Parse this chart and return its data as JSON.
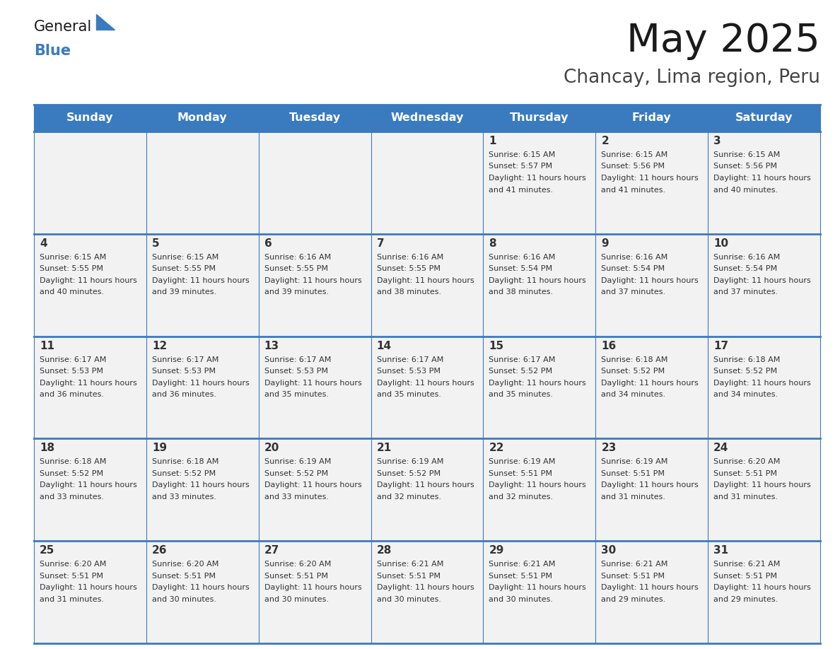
{
  "title": "May 2025",
  "subtitle": "Chancay, Lima region, Peru",
  "header_color": "#3a7bbf",
  "header_text_color": "#ffffff",
  "cell_bg_color": "#f2f2f2",
  "day_num_color": "#333333",
  "text_color": "#333333",
  "line_color": "#3a7bbf",
  "days_of_week": [
    "Sunday",
    "Monday",
    "Tuesday",
    "Wednesday",
    "Thursday",
    "Friday",
    "Saturday"
  ],
  "weeks": [
    [
      {
        "day": "",
        "sunrise": "",
        "sunset": "",
        "daylight": ""
      },
      {
        "day": "",
        "sunrise": "",
        "sunset": "",
        "daylight": ""
      },
      {
        "day": "",
        "sunrise": "",
        "sunset": "",
        "daylight": ""
      },
      {
        "day": "",
        "sunrise": "",
        "sunset": "",
        "daylight": ""
      },
      {
        "day": "1",
        "sunrise": "6:15 AM",
        "sunset": "5:57 PM",
        "daylight": "11 hours and 41 minutes."
      },
      {
        "day": "2",
        "sunrise": "6:15 AM",
        "sunset": "5:56 PM",
        "daylight": "11 hours and 41 minutes."
      },
      {
        "day": "3",
        "sunrise": "6:15 AM",
        "sunset": "5:56 PM",
        "daylight": "11 hours and 40 minutes."
      }
    ],
    [
      {
        "day": "4",
        "sunrise": "6:15 AM",
        "sunset": "5:55 PM",
        "daylight": "11 hours and 40 minutes."
      },
      {
        "day": "5",
        "sunrise": "6:15 AM",
        "sunset": "5:55 PM",
        "daylight": "11 hours and 39 minutes."
      },
      {
        "day": "6",
        "sunrise": "6:16 AM",
        "sunset": "5:55 PM",
        "daylight": "11 hours and 39 minutes."
      },
      {
        "day": "7",
        "sunrise": "6:16 AM",
        "sunset": "5:55 PM",
        "daylight": "11 hours and 38 minutes."
      },
      {
        "day": "8",
        "sunrise": "6:16 AM",
        "sunset": "5:54 PM",
        "daylight": "11 hours and 38 minutes."
      },
      {
        "day": "9",
        "sunrise": "6:16 AM",
        "sunset": "5:54 PM",
        "daylight": "11 hours and 37 minutes."
      },
      {
        "day": "10",
        "sunrise": "6:16 AM",
        "sunset": "5:54 PM",
        "daylight": "11 hours and 37 minutes."
      }
    ],
    [
      {
        "day": "11",
        "sunrise": "6:17 AM",
        "sunset": "5:53 PM",
        "daylight": "11 hours and 36 minutes."
      },
      {
        "day": "12",
        "sunrise": "6:17 AM",
        "sunset": "5:53 PM",
        "daylight": "11 hours and 36 minutes."
      },
      {
        "day": "13",
        "sunrise": "6:17 AM",
        "sunset": "5:53 PM",
        "daylight": "11 hours and 35 minutes."
      },
      {
        "day": "14",
        "sunrise": "6:17 AM",
        "sunset": "5:53 PM",
        "daylight": "11 hours and 35 minutes."
      },
      {
        "day": "15",
        "sunrise": "6:17 AM",
        "sunset": "5:52 PM",
        "daylight": "11 hours and 35 minutes."
      },
      {
        "day": "16",
        "sunrise": "6:18 AM",
        "sunset": "5:52 PM",
        "daylight": "11 hours and 34 minutes."
      },
      {
        "day": "17",
        "sunrise": "6:18 AM",
        "sunset": "5:52 PM",
        "daylight": "11 hours and 34 minutes."
      }
    ],
    [
      {
        "day": "18",
        "sunrise": "6:18 AM",
        "sunset": "5:52 PM",
        "daylight": "11 hours and 33 minutes."
      },
      {
        "day": "19",
        "sunrise": "6:18 AM",
        "sunset": "5:52 PM",
        "daylight": "11 hours and 33 minutes."
      },
      {
        "day": "20",
        "sunrise": "6:19 AM",
        "sunset": "5:52 PM",
        "daylight": "11 hours and 33 minutes."
      },
      {
        "day": "21",
        "sunrise": "6:19 AM",
        "sunset": "5:52 PM",
        "daylight": "11 hours and 32 minutes."
      },
      {
        "day": "22",
        "sunrise": "6:19 AM",
        "sunset": "5:51 PM",
        "daylight": "11 hours and 32 minutes."
      },
      {
        "day": "23",
        "sunrise": "6:19 AM",
        "sunset": "5:51 PM",
        "daylight": "11 hours and 31 minutes."
      },
      {
        "day": "24",
        "sunrise": "6:20 AM",
        "sunset": "5:51 PM",
        "daylight": "11 hours and 31 minutes."
      }
    ],
    [
      {
        "day": "25",
        "sunrise": "6:20 AM",
        "sunset": "5:51 PM",
        "daylight": "11 hours and 31 minutes."
      },
      {
        "day": "26",
        "sunrise": "6:20 AM",
        "sunset": "5:51 PM",
        "daylight": "11 hours and 30 minutes."
      },
      {
        "day": "27",
        "sunrise": "6:20 AM",
        "sunset": "5:51 PM",
        "daylight": "11 hours and 30 minutes."
      },
      {
        "day": "28",
        "sunrise": "6:21 AM",
        "sunset": "5:51 PM",
        "daylight": "11 hours and 30 minutes."
      },
      {
        "day": "29",
        "sunrise": "6:21 AM",
        "sunset": "5:51 PM",
        "daylight": "11 hours and 30 minutes."
      },
      {
        "day": "30",
        "sunrise": "6:21 AM",
        "sunset": "5:51 PM",
        "daylight": "11 hours and 29 minutes."
      },
      {
        "day": "31",
        "sunrise": "6:21 AM",
        "sunset": "5:51 PM",
        "daylight": "11 hours and 29 minutes."
      }
    ]
  ],
  "logo_general_color": "#1a1a1a",
  "logo_blue_color": "#3a7bbf",
  "logo_triangle_color": "#3a7bbf"
}
